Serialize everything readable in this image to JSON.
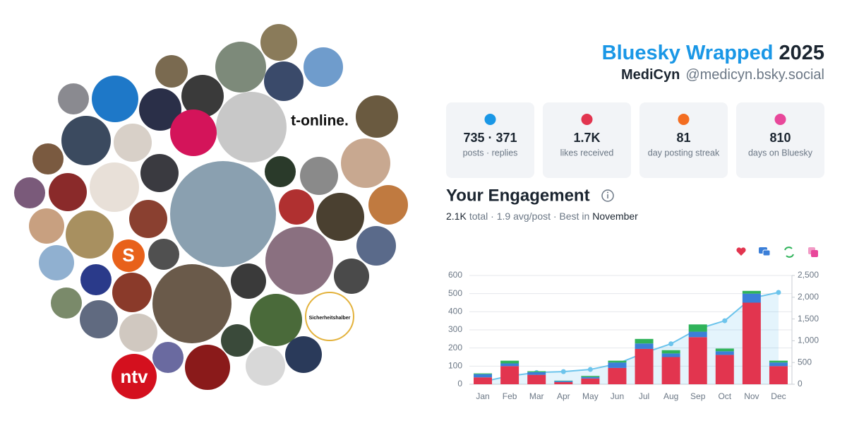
{
  "header": {
    "brand": "Bluesky Wrapped",
    "year": "2025",
    "name": "MediCyn",
    "handle": "@medicyn.bsky.social"
  },
  "avatar_labels": {
    "tonline": "t-online.",
    "ntv": "ntv",
    "s": "S",
    "ring": "Sicherheitshalber"
  },
  "stats": [
    {
      "value": "735 · 371",
      "label": "posts · replies"
    },
    {
      "value": "1.7K",
      "label": "likes received"
    },
    {
      "value": "81",
      "label": "day posting streak"
    },
    {
      "value": "810",
      "label": "days on Bluesky"
    }
  ],
  "section": {
    "title": "Your Engagement",
    "total": "2.1K",
    "middle": "total · 1.9 avg/post · Best in",
    "best": "November"
  },
  "chart_data": {
    "type": "bar",
    "stacked": true,
    "categories": [
      "Jan",
      "Feb",
      "Mar",
      "Apr",
      "May",
      "Jun",
      "Jul",
      "Aug",
      "Sep",
      "Oct",
      "Nov",
      "Dec"
    ],
    "series": [
      {
        "color": "#e2354f",
        "values": [
          38,
          100,
          52,
          12,
          32,
          90,
          195,
          150,
          260,
          162,
          450,
          100
        ]
      },
      {
        "color": "#3b7fd8",
        "values": [
          18,
          15,
          15,
          6,
          8,
          30,
          30,
          20,
          30,
          20,
          50,
          20
        ]
      },
      {
        "color": "#2fb35a",
        "values": [
          4,
          15,
          5,
          2,
          6,
          10,
          25,
          18,
          40,
          15,
          15,
          10
        ]
      },
      {
        "color": "#e8479a",
        "values": [
          0,
          0,
          0,
          0,
          0,
          0,
          0,
          0,
          0,
          0,
          0,
          0
        ]
      },
      {
        "type": "line",
        "axis": "y2",
        "color": "#6cc4ec",
        "values": [
          60,
          190,
          270,
          290,
          340,
          470,
          720,
          930,
          1270,
          1460,
          1980,
          2110
        ]
      }
    ],
    "ylim": [
      0,
      600
    ],
    "yticks": [
      0,
      100,
      200,
      300,
      400,
      500,
      600
    ],
    "y2lim": [
      0,
      2500
    ],
    "y2ticks": [
      0,
      500,
      {
        "value": 1000,
        "label": "1,000"
      },
      {
        "value": 1500,
        "label": "1,500"
      },
      {
        "value": 2000,
        "label": "2,000"
      },
      {
        "value": 2500,
        "label": "2,500"
      }
    ],
    "grid": true
  }
}
